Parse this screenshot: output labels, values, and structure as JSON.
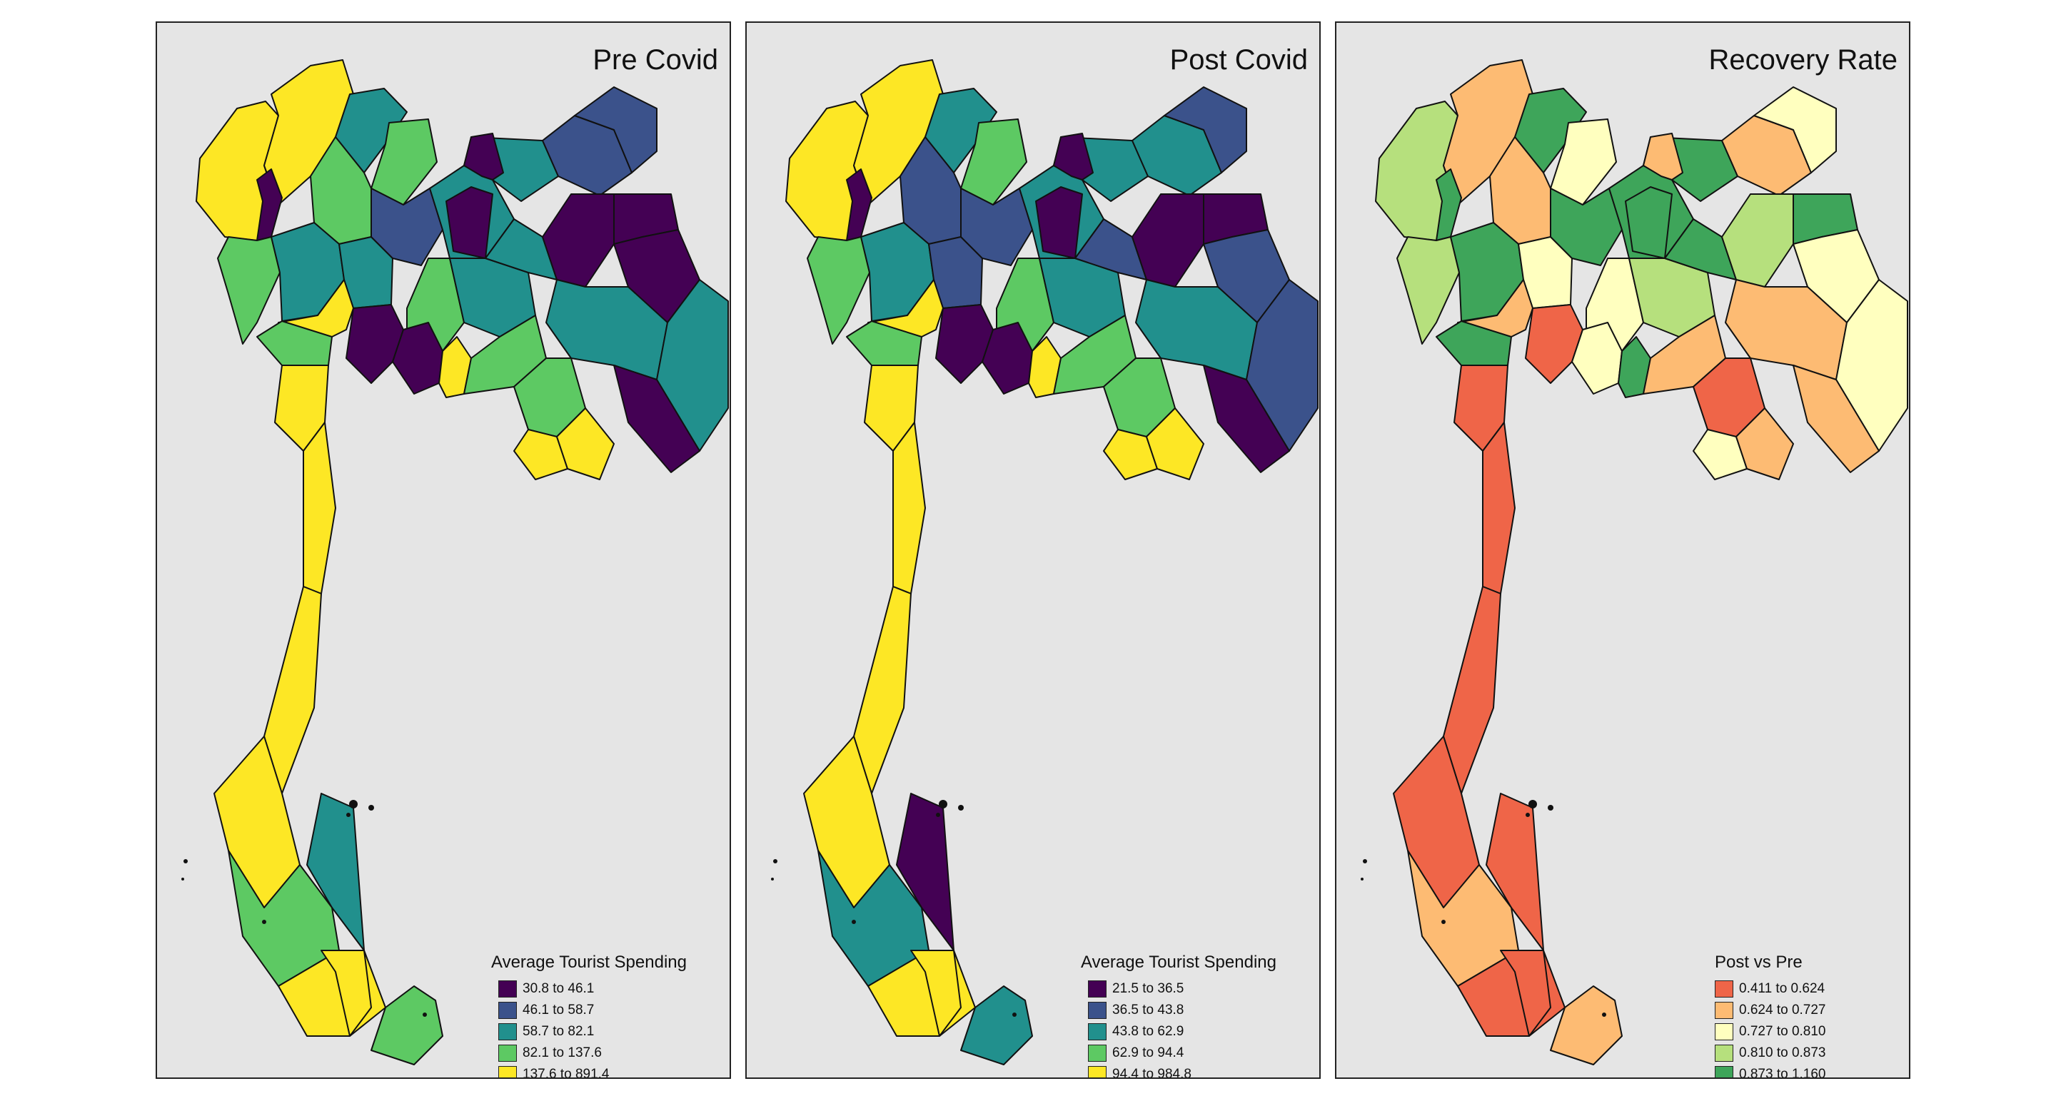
{
  "panels": [
    {
      "title": "Pre Covid",
      "legend_title": "Average Tourist Spending",
      "legend": [
        {
          "label": "30.8 to 46.1",
          "color": "#440154"
        },
        {
          "label": "46.1 to 58.7",
          "color": "#3b528b"
        },
        {
          "label": "58.7 to 82.1",
          "color": "#21908d"
        },
        {
          "label": "82.1 to 137.6",
          "color": "#5dc963"
        },
        {
          "label": "137.6 to 891.4",
          "color": "#fde725"
        }
      ],
      "region_classes": [
        4,
        4,
        2,
        3,
        3,
        0,
        3,
        2,
        2,
        1,
        2,
        2,
        1,
        1,
        0,
        3,
        2,
        0,
        2,
        0,
        0,
        0,
        2,
        2,
        0,
        4,
        0,
        0,
        4,
        3,
        3,
        4,
        4,
        3,
        4,
        4,
        4,
        4,
        2,
        3,
        4,
        3,
        4
      ]
    },
    {
      "title": "Post Covid",
      "legend_title": "Average Tourist Spending",
      "legend": [
        {
          "label": "21.5 to 36.5",
          "color": "#440154"
        },
        {
          "label": "36.5 to 43.8",
          "color": "#3b528b"
        },
        {
          "label": "43.8 to 62.9",
          "color": "#21908d"
        },
        {
          "label": "62.9 to 94.4",
          "color": "#5dc963"
        },
        {
          "label": "94.4 to 984.8",
          "color": "#fde725"
        }
      ],
      "region_classes": [
        4,
        4,
        2,
        3,
        1,
        0,
        3,
        2,
        1,
        1,
        2,
        2,
        2,
        1,
        0,
        3,
        2,
        0,
        1,
        0,
        0,
        1,
        2,
        1,
        0,
        4,
        0,
        0,
        4,
        3,
        3,
        4,
        4,
        3,
        4,
        4,
        4,
        4,
        0,
        2,
        4,
        2,
        4
      ]
    },
    {
      "title": "Recovery Rate",
      "legend_title": "Post vs Pre",
      "legend": [
        {
          "label": "0.411 to 0.624",
          "color": "#ef6548"
        },
        {
          "label": "0.624 to 0.727",
          "color": "#fdbb73"
        },
        {
          "label": "0.727 to 0.810",
          "color": "#ffffbf"
        },
        {
          "label": "0.810 to 0.873",
          "color": "#b6e07d"
        },
        {
          "label": "0.873 to 1.160",
          "color": "#3ea55a"
        }
      ],
      "region_classes": [
        3,
        1,
        4,
        2,
        1,
        4,
        3,
        4,
        2,
        4,
        4,
        4,
        1,
        2,
        1,
        2,
        3,
        4,
        4,
        3,
        4,
        2,
        1,
        2,
        1,
        1,
        0,
        2,
        4,
        1,
        0,
        2,
        1,
        4,
        0,
        0,
        0,
        0,
        0,
        1,
        0,
        1,
        0
      ]
    }
  ]
}
